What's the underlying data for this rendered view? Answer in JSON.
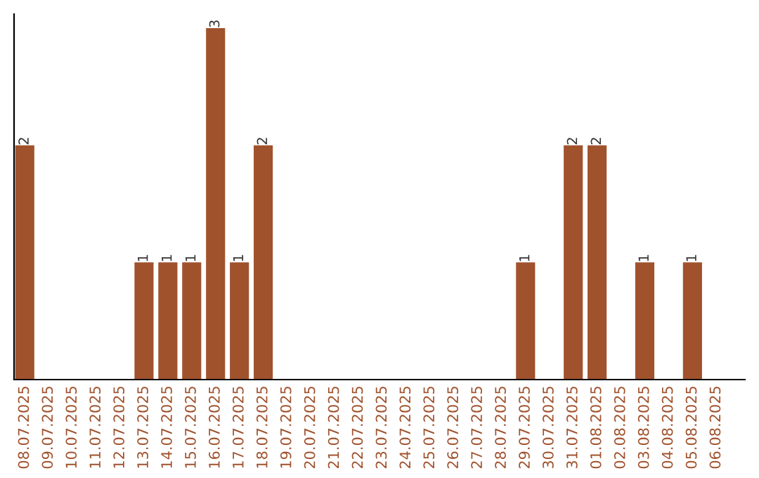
{
  "chart_data": {
    "type": "bar",
    "categories": [
      "08.07.2025",
      "09.07.2025",
      "10.07.2025",
      "11.07.2025",
      "12.07.2025",
      "13.07.2025",
      "14.07.2025",
      "15.07.2025",
      "16.07.2025",
      "17.07.2025",
      "18.07.2025",
      "19.07.2025",
      "20.07.2025",
      "21.07.2025",
      "22.07.2025",
      "23.07.2025",
      "24.07.2025",
      "25.07.2025",
      "26.07.2025",
      "27.07.2025",
      "28.07.2025",
      "29.07.2025",
      "30.07.2025",
      "31.07.2025",
      "01.08.2025",
      "02.08.2025",
      "03.08.2025",
      "04.08.2025",
      "05.08.2025",
      "06.08.2025"
    ],
    "values": [
      2,
      0,
      0,
      0,
      0,
      1,
      1,
      1,
      3,
      1,
      2,
      0,
      0,
      0,
      0,
      0,
      0,
      0,
      0,
      0,
      0,
      1,
      0,
      2,
      2,
      0,
      1,
      0,
      1,
      0
    ],
    "value_labels": [
      "2",
      null,
      null,
      null,
      null,
      "1",
      "1",
      "1",
      "3",
      "1",
      "2",
      null,
      null,
      null,
      null,
      null,
      null,
      null,
      null,
      null,
      null,
      "1",
      null,
      "2",
      "2",
      null,
      "1",
      null,
      "1",
      null
    ],
    "color": "#a0522d",
    "grid": false,
    "legend": false
  }
}
